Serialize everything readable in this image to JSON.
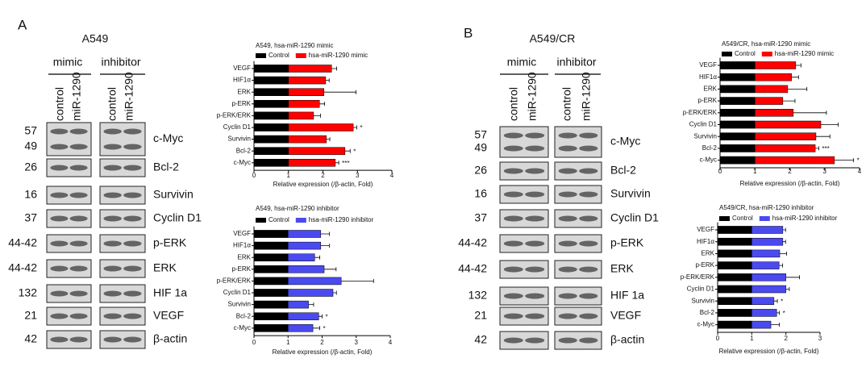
{
  "blots": [
    {
      "label": "A",
      "cell_line": "A549",
      "groups": [
        {
          "name": "mimic",
          "lanes": [
            "control",
            "miR-1290"
          ]
        },
        {
          "name": "inhibitor",
          "lanes": [
            "control",
            "miR-1290"
          ]
        }
      ],
      "rows": [
        {
          "mw": [
            "57",
            "49"
          ],
          "protein": "c-Myc"
        },
        {
          "mw": [
            "26"
          ],
          "protein": "Bcl-2"
        },
        {
          "mw": [
            "16"
          ],
          "protein": "Survivin"
        },
        {
          "mw": [
            "37"
          ],
          "protein": "Cyclin D1"
        },
        {
          "mw": [
            "44-42"
          ],
          "protein": "p-ERK"
        },
        {
          "mw": [
            "44-42"
          ],
          "protein": "ERK"
        },
        {
          "mw": [
            "132"
          ],
          "protein": "HIF 1a"
        },
        {
          "mw": [
            "21"
          ],
          "protein": "VEGF"
        },
        {
          "mw": [
            "42"
          ],
          "protein": "β-actin"
        }
      ]
    },
    {
      "label": "B",
      "cell_line": "A549/CR",
      "groups": [
        {
          "name": "mimic",
          "lanes": [
            "control",
            "miR-1290"
          ]
        },
        {
          "name": "inhibitor",
          "lanes": [
            "control",
            "miR-1290"
          ]
        }
      ],
      "rows": [
        {
          "mw": [
            "57",
            "49"
          ],
          "protein": "c-Myc"
        },
        {
          "mw": [
            "26"
          ],
          "protein": "Bcl-2"
        },
        {
          "mw": [
            "16"
          ],
          "protein": "Survivin"
        },
        {
          "mw": [
            "37"
          ],
          "protein": "Cyclin D1"
        },
        {
          "mw": [
            "44-42"
          ],
          "protein": "p-ERK"
        },
        {
          "mw": [
            "44-42"
          ],
          "protein": "ERK"
        },
        {
          "mw": [
            "132"
          ],
          "protein": "HIF 1a"
        },
        {
          "mw": [
            "21"
          ],
          "protein": "VEGF"
        },
        {
          "mw": [
            "42"
          ],
          "protein": "β-actin"
        }
      ]
    }
  ],
  "chart_data": [
    {
      "type": "bar",
      "orientation": "horizontal",
      "title": "A549, hsa-miR-1290 mimic",
      "x_label": "Relative expression  (/β-actin, Fold)",
      "categories": [
        "VEGF",
        "HIF1α",
        "ERK",
        "p-ERK",
        "p-ERK/ERK",
        "Cyclin D1",
        "Survivin",
        "Bcl-2",
        "c-Myc"
      ],
      "series": [
        {
          "name": "Control",
          "color": "#000000",
          "values": [
            1,
            1,
            1,
            1,
            1,
            1,
            1,
            1,
            1
          ]
        },
        {
          "name": "hsa-miR-1290 mimic",
          "color": "#ff0000",
          "values": [
            2.25,
            2.08,
            2.03,
            1.9,
            1.73,
            2.88,
            2.1,
            2.64,
            2.36
          ],
          "errors": [
            0.15,
            0.1,
            0.93,
            0.15,
            0.2,
            0.1,
            0.1,
            0.15,
            0.1
          ]
        }
      ],
      "significance": [
        null,
        null,
        null,
        null,
        null,
        "*",
        null,
        "*",
        "***"
      ],
      "xlim": [
        0,
        4
      ],
      "xticks": [
        0,
        1,
        2,
        3,
        4
      ]
    },
    {
      "type": "bar",
      "orientation": "horizontal",
      "title": "A549, hsa-miR-1290 inhibitor",
      "x_label": "Relative expression  (/β-actin, Fold)",
      "categories": [
        "VEGF",
        "HIF1α",
        "ERK",
        "p-ERK",
        "p-ERK/ERK",
        "Cyclin D1",
        "Survivin",
        "Bcl-2",
        "c-Myc"
      ],
      "series": [
        {
          "name": "Control",
          "color": "#000000",
          "values": [
            1,
            1,
            1,
            1,
            1,
            1,
            1,
            1,
            1
          ]
        },
        {
          "name": "hsa-miR-1290 inhibitor",
          "color": "#4a4af0",
          "values": [
            1.96,
            1.96,
            1.78,
            2.06,
            2.56,
            2.32,
            1.6,
            1.9,
            1.73
          ],
          "errors": [
            0.25,
            0.25,
            0.15,
            0.35,
            0.95,
            0.1,
            0.15,
            0.1,
            0.2
          ]
        }
      ],
      "significance": [
        null,
        null,
        null,
        null,
        null,
        null,
        null,
        "*",
        "*"
      ],
      "xlim": [
        0,
        4
      ],
      "xticks": [
        0,
        1,
        2,
        3,
        4
      ]
    },
    {
      "type": "bar",
      "orientation": "horizontal",
      "title": "A549/CR, hsa-miR-1290 mimic",
      "x_label": "Relative expression  (/β-actin, Fold)",
      "categories": [
        "VEGF",
        "HIF1α",
        "ERK",
        "p-ERK",
        "p-ERK/ERK",
        "Cyclin D1",
        "Survivin",
        "Bcl-2",
        "c-Myc"
      ],
      "series": [
        {
          "name": "Control",
          "color": "#000000",
          "values": [
            1,
            1,
            1,
            1,
            1,
            1,
            1,
            1,
            1
          ]
        },
        {
          "name": "hsa-miR-1290 mimic",
          "color": "#ff0000",
          "values": [
            2.17,
            2.05,
            1.94,
            1.8,
            2.1,
            2.89,
            2.75,
            2.73,
            3.28
          ],
          "errors": [
            0.15,
            0.2,
            0.55,
            0.35,
            0.95,
            0.5,
            0.4,
            0.1,
            0.55
          ]
        }
      ],
      "significance": [
        null,
        null,
        null,
        null,
        null,
        null,
        null,
        "***",
        "*"
      ],
      "xlim": [
        0,
        4
      ],
      "xticks": [
        0,
        1,
        2,
        3,
        4
      ]
    },
    {
      "type": "bar",
      "orientation": "horizontal",
      "title": "A549/CR, hsa-miR-1290 inhibitor",
      "x_label": "Relative expression  (/β-actin, Fold)",
      "categories": [
        "VEGF",
        "HIF1α",
        "ERK",
        "p-ERK",
        "p-ERK/ERK",
        "Cyclin D1",
        "Survivin",
        "Bcl-2",
        "c-Myc"
      ],
      "series": [
        {
          "name": "Control",
          "color": "#000000",
          "values": [
            1,
            1,
            1,
            1,
            1,
            1,
            1,
            1,
            1
          ]
        },
        {
          "name": "hsa-miR-1290 inhibitor",
          "color": "#4a4af0",
          "values": [
            1.91,
            1.91,
            1.82,
            1.8,
            2.0,
            2.0,
            1.65,
            1.73,
            1.56
          ],
          "errors": [
            0.08,
            0.08,
            0.2,
            0.1,
            0.4,
            0.1,
            0.1,
            0.08,
            0.25
          ]
        }
      ],
      "significance": [
        null,
        null,
        null,
        null,
        null,
        null,
        "*",
        "*",
        null
      ],
      "xlim": [
        0,
        3
      ],
      "xticks": [
        0,
        1,
        2,
        3
      ]
    }
  ]
}
